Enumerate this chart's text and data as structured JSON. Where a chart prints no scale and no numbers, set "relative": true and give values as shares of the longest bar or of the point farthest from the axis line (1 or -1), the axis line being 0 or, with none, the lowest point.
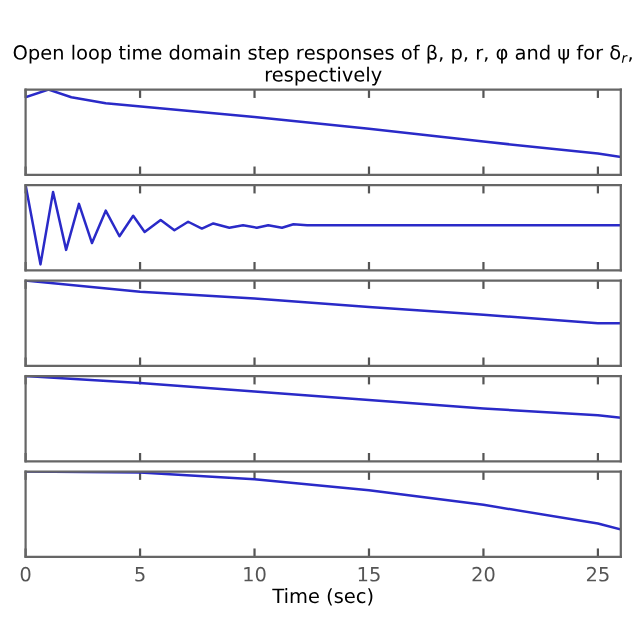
{
  "chart_data": [
    {
      "type": "line",
      "title": "Open loop time domain step responses of β, p, r, φ and ψ for δ$_{r}$, respectively",
      "relative": true,
      "x": [
        0,
        1,
        2,
        3.5,
        10,
        15,
        20,
        25,
        26
      ],
      "series": [
        {
          "color": "#2a2ac8",
          "values": [
            0.91,
            1.0,
            0.91,
            0.84,
            0.68,
            0.54,
            0.39,
            0.25,
            0.21
          ]
        }
      ],
      "xlim": [
        0,
        26
      ],
      "xticks": [
        0,
        5,
        10,
        15,
        20,
        25
      ],
      "tick_labels": false,
      "grid": false
    },
    {
      "type": "line",
      "relative": true,
      "x": [
        0,
        0.65,
        1.2,
        1.77,
        2.33,
        2.9,
        3.5,
        4.1,
        4.7,
        5.2,
        5.9,
        6.5,
        7.1,
        7.7,
        8.2,
        8.9,
        9.5,
        10.1,
        10.6,
        11.2,
        11.7,
        12.3,
        26
      ],
      "series": [
        {
          "color": "#2a2ac8",
          "values": [
            1.0,
            0.07,
            0.92,
            0.24,
            0.78,
            0.32,
            0.7,
            0.4,
            0.64,
            0.45,
            0.59,
            0.47,
            0.57,
            0.49,
            0.55,
            0.5,
            0.53,
            0.5,
            0.53,
            0.5,
            0.54,
            0.53,
            0.53
          ]
        }
      ],
      "xlim": [
        0,
        26
      ],
      "xticks": [
        0,
        5,
        10,
        15,
        20,
        25
      ],
      "tick_labels": false,
      "grid": false
    },
    {
      "type": "line",
      "relative": true,
      "x": [
        0,
        5,
        10,
        15,
        20,
        25,
        26
      ],
      "series": [
        {
          "color": "#2a2ac8",
          "values": [
            1.0,
            0.87,
            0.79,
            0.69,
            0.6,
            0.5,
            0.5
          ]
        }
      ],
      "xlim": [
        0,
        26
      ],
      "xticks": [
        0,
        5,
        10,
        15,
        20,
        25
      ],
      "tick_labels": false,
      "grid": false
    },
    {
      "type": "line",
      "relative": true,
      "x": [
        0,
        5,
        10,
        15,
        20,
        25,
        26
      ],
      "series": [
        {
          "color": "#2a2ac8",
          "values": [
            1.0,
            0.92,
            0.82,
            0.72,
            0.62,
            0.54,
            0.51
          ]
        }
      ],
      "xlim": [
        0,
        26
      ],
      "xticks": [
        0,
        5,
        10,
        15,
        20,
        25
      ],
      "tick_labels": false,
      "grid": false
    },
    {
      "type": "line",
      "relative": true,
      "xlabel": "Time (sec)",
      "x": [
        0,
        5,
        10,
        15,
        20,
        25,
        26
      ],
      "series": [
        {
          "color": "#2a2ac8",
          "values": [
            1.0,
            0.99,
            0.91,
            0.78,
            0.61,
            0.39,
            0.32
          ]
        }
      ],
      "xlim": [
        0,
        26
      ],
      "xticks": [
        0,
        5,
        10,
        15,
        20,
        25
      ],
      "tick_labels": "x",
      "grid": false
    }
  ]
}
